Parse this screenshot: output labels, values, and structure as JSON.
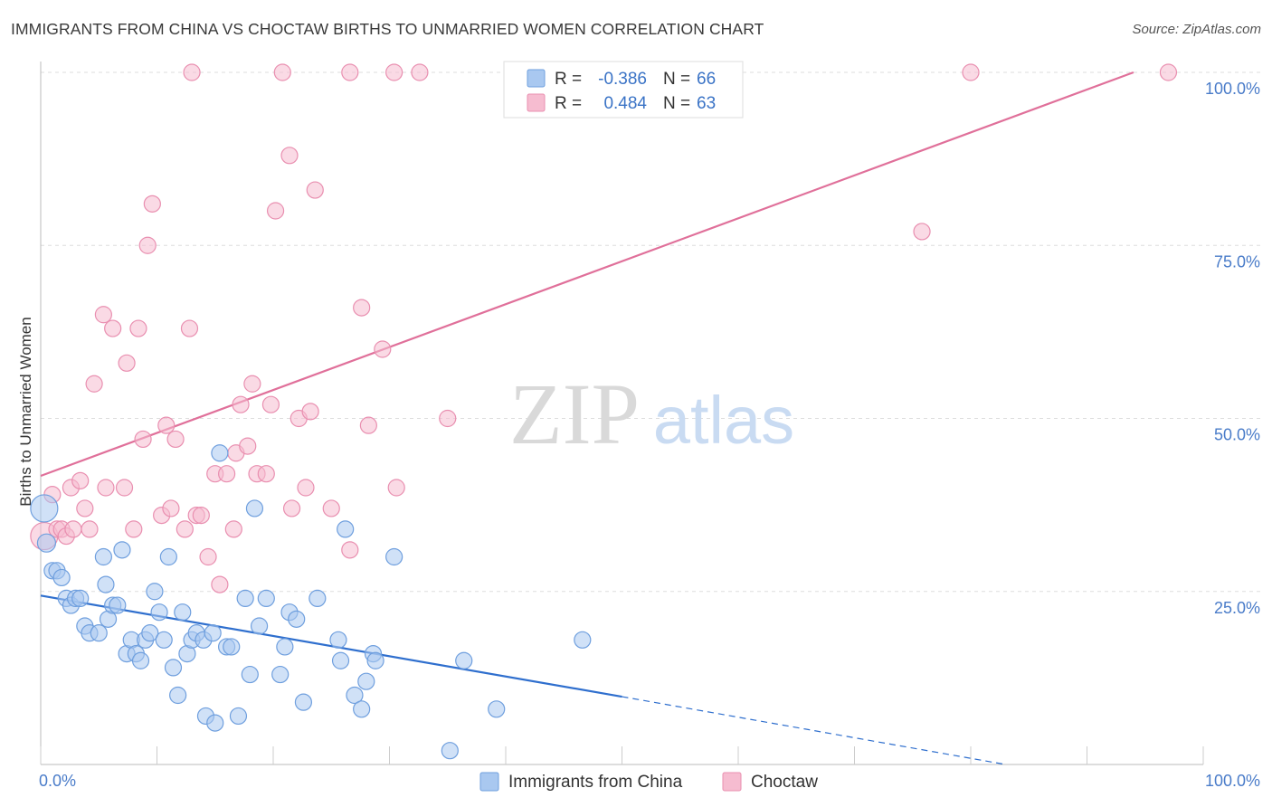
{
  "title": "IMMIGRANTS FROM CHINA VS CHOCTAW BIRTHS TO UNMARRIED WOMEN CORRELATION CHART",
  "source": "Source: ZipAtlas.com",
  "watermark": {
    "zip": "ZIP",
    "atlas": "atlas"
  },
  "colors": {
    "china_fill": "#a9c8f0",
    "china_stroke": "#6f9fde",
    "china_line": "#2f6fce",
    "choctaw_fill": "#f6bcd0",
    "choctaw_stroke": "#e98fb0",
    "choctaw_line": "#e0709a",
    "axis_label": "#4a7cc9",
    "grid": "#dddddd"
  },
  "chart_data": {
    "type": "scatter",
    "xlabel": "",
    "ylabel": "Births to Unmarried Women",
    "xlim": [
      0,
      100
    ],
    "ylim": [
      0,
      100
    ],
    "x_ticks": [
      "0.0%",
      "100.0%"
    ],
    "y_ticks": [
      {
        "value": 25,
        "label": "25.0%"
      },
      {
        "value": 50,
        "label": "50.0%"
      },
      {
        "value": 75,
        "label": "75.0%"
      },
      {
        "value": 100,
        "label": "100.0%"
      }
    ],
    "legend_top": {
      "rows": [
        {
          "r_label": "R =",
          "r_value": "-0.386",
          "n_label": "N =",
          "n_value": "66"
        },
        {
          "r_label": "R =",
          "r_value": "0.484",
          "n_label": "N =",
          "n_value": "63"
        }
      ]
    },
    "legend_bottom": [
      "Immigrants from China",
      "Choctaw"
    ],
    "series": [
      {
        "name": "Immigrants from China",
        "trend": {
          "x0": 0,
          "y0": 24.4,
          "x1": 50,
          "y1": 9.8,
          "dash_to_x": 83,
          "dash_to_y": 0
        },
        "points": [
          [
            0.3,
            37,
            30
          ],
          [
            0.5,
            32,
            20
          ],
          [
            1.0,
            28,
            18
          ],
          [
            1.4,
            28,
            18
          ],
          [
            1.8,
            27,
            18
          ],
          [
            2.2,
            24,
            18
          ],
          [
            2.6,
            23,
            18
          ],
          [
            3.0,
            24,
            18
          ],
          [
            3.4,
            24,
            18
          ],
          [
            3.8,
            20,
            18
          ],
          [
            4.2,
            19,
            18
          ],
          [
            5.0,
            19,
            18
          ],
          [
            5.4,
            30,
            18
          ],
          [
            5.6,
            26,
            18
          ],
          [
            5.8,
            21,
            18
          ],
          [
            6.2,
            23,
            18
          ],
          [
            6.6,
            23,
            18
          ],
          [
            7.0,
            31,
            18
          ],
          [
            7.4,
            16,
            18
          ],
          [
            7.8,
            18,
            18
          ],
          [
            8.2,
            16,
            18
          ],
          [
            8.6,
            15,
            18
          ],
          [
            9.0,
            18,
            18
          ],
          [
            9.4,
            19,
            18
          ],
          [
            9.8,
            25,
            18
          ],
          [
            10.2,
            22,
            18
          ],
          [
            10.6,
            18,
            18
          ],
          [
            11.0,
            30,
            18
          ],
          [
            11.4,
            14,
            18
          ],
          [
            11.8,
            10,
            18
          ],
          [
            12.2,
            22,
            18
          ],
          [
            12.6,
            16,
            18
          ],
          [
            13.0,
            18,
            18
          ],
          [
            13.4,
            19,
            18
          ],
          [
            14.0,
            18,
            18
          ],
          [
            14.2,
            7,
            18
          ],
          [
            14.8,
            19,
            18
          ],
          [
            15.0,
            6,
            18
          ],
          [
            15.4,
            45,
            18
          ],
          [
            16.0,
            17,
            18
          ],
          [
            16.4,
            17,
            18
          ],
          [
            17.0,
            7,
            18
          ],
          [
            17.6,
            24,
            18
          ],
          [
            18.0,
            13,
            18
          ],
          [
            18.4,
            37,
            18
          ],
          [
            18.8,
            20,
            18
          ],
          [
            19.4,
            24,
            18
          ],
          [
            20.6,
            13,
            18
          ],
          [
            21.0,
            17,
            18
          ],
          [
            21.4,
            22,
            18
          ],
          [
            22.0,
            21,
            18
          ],
          [
            22.6,
            9,
            18
          ],
          [
            23.8,
            24,
            18
          ],
          [
            25.6,
            18,
            18
          ],
          [
            25.8,
            15,
            18
          ],
          [
            26.2,
            34,
            18
          ],
          [
            27.0,
            10,
            18
          ],
          [
            27.6,
            8,
            18
          ],
          [
            28.0,
            12,
            18
          ],
          [
            28.6,
            16,
            18
          ],
          [
            28.8,
            15,
            18
          ],
          [
            30.4,
            30,
            18
          ],
          [
            35.2,
            2,
            18
          ],
          [
            36.4,
            15,
            18
          ],
          [
            39.2,
            8,
            18
          ],
          [
            46.6,
            18,
            18
          ]
        ]
      },
      {
        "name": "Choctaw",
        "trend": {
          "x0": 0,
          "y0": 41.7,
          "x1": 94,
          "y1": 100
        },
        "points": [
          [
            0.3,
            33,
            30
          ],
          [
            1.0,
            39,
            18
          ],
          [
            1.4,
            34,
            18
          ],
          [
            1.8,
            34,
            18
          ],
          [
            2.2,
            33,
            18
          ],
          [
            2.6,
            40,
            18
          ],
          [
            2.8,
            34,
            18
          ],
          [
            3.4,
            41,
            18
          ],
          [
            3.8,
            37,
            18
          ],
          [
            4.2,
            34,
            18
          ],
          [
            4.6,
            55,
            18
          ],
          [
            5.4,
            65,
            18
          ],
          [
            5.6,
            40,
            18
          ],
          [
            6.2,
            63,
            18
          ],
          [
            7.2,
            40,
            18
          ],
          [
            7.4,
            58,
            18
          ],
          [
            8.0,
            34,
            18
          ],
          [
            8.4,
            63,
            18
          ],
          [
            8.8,
            47,
            18
          ],
          [
            9.2,
            75,
            18
          ],
          [
            9.6,
            81,
            18
          ],
          [
            10.4,
            36,
            18
          ],
          [
            10.8,
            49,
            18
          ],
          [
            11.2,
            37,
            18
          ],
          [
            11.6,
            47,
            18
          ],
          [
            12.4,
            34,
            18
          ],
          [
            12.8,
            63,
            18
          ],
          [
            13.4,
            36,
            18
          ],
          [
            13.8,
            36,
            18
          ],
          [
            14.4,
            30,
            18
          ],
          [
            15.0,
            42,
            18
          ],
          [
            15.4,
            26,
            18
          ],
          [
            16.0,
            42,
            18
          ],
          [
            16.6,
            34,
            18
          ],
          [
            16.8,
            45,
            18
          ],
          [
            17.2,
            52,
            18
          ],
          [
            17.8,
            46,
            18
          ],
          [
            18.2,
            55,
            18
          ],
          [
            18.6,
            42,
            18
          ],
          [
            19.4,
            42,
            18
          ],
          [
            19.8,
            52,
            18
          ],
          [
            20.2,
            80,
            18
          ],
          [
            21.4,
            88,
            18
          ],
          [
            21.6,
            37,
            18
          ],
          [
            22.2,
            50,
            18
          ],
          [
            22.8,
            40,
            18
          ],
          [
            23.2,
            51,
            18
          ],
          [
            23.6,
            83,
            18
          ],
          [
            25.0,
            37,
            18
          ],
          [
            26.6,
            31,
            18
          ],
          [
            27.6,
            66,
            18
          ],
          [
            28.2,
            49,
            18
          ],
          [
            29.4,
            60,
            18
          ],
          [
            30.6,
            40,
            18
          ],
          [
            35.0,
            50,
            18
          ],
          [
            13.0,
            100,
            18
          ],
          [
            20.8,
            100,
            18
          ],
          [
            26.6,
            100,
            18
          ],
          [
            30.4,
            100,
            18
          ],
          [
            32.6,
            100,
            18
          ],
          [
            75.8,
            77,
            18
          ],
          [
            80.0,
            100,
            18
          ],
          [
            97.0,
            100,
            18
          ]
        ]
      }
    ]
  }
}
